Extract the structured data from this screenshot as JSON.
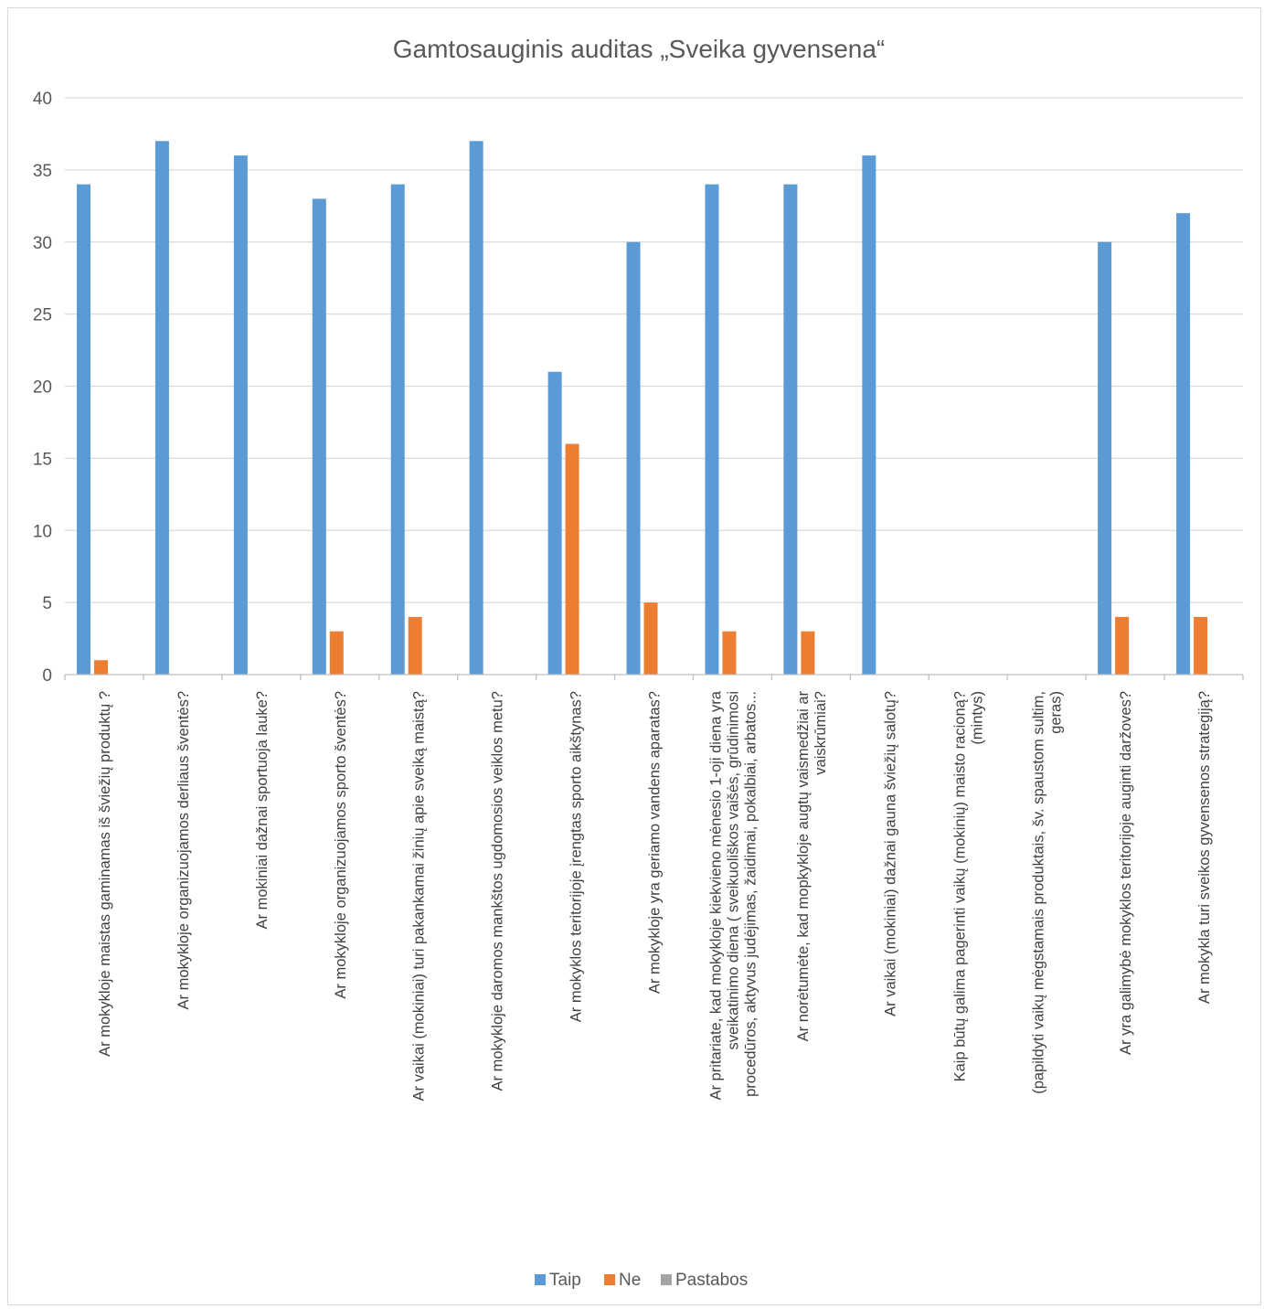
{
  "chart_data": {
    "type": "bar",
    "title": "Gamtosauginis auditas „Sveika gyvensena“",
    "xlabel": "",
    "ylabel": "",
    "ylim": [
      0,
      40
    ],
    "yticks": [
      0,
      5,
      10,
      15,
      20,
      25,
      30,
      35,
      40
    ],
    "grid": true,
    "legend_position": "bottom",
    "categories": [
      [
        "Ar mokykloje maistas gaminamas iš šviežių produktų ?"
      ],
      [
        "Ar mokykloje organizuojamos derliaus šventės?"
      ],
      [
        "Ar mokiniai dažnai sportuoja lauke?"
      ],
      [
        "Ar mokykloje organizuojamos sporto šventės?"
      ],
      [
        "Ar vaikai (mokiniai) turi pakankamai žinių apie sveiką maistą?"
      ],
      [
        "Ar mokykloje daromos mankštos ugdomosios veiklos metu?"
      ],
      [
        "Ar mokyklos teritorijoje įrengtas sporto aikštynas?"
      ],
      [
        "Ar mokykloje yra geriamo vandens aparatas?"
      ],
      [
        "Ar pritariate, kad mokykloje kiekvieno mėnesio 1-oji diena yra",
        "sveikatinimo diena ( sveikuoliškos vaišės, grūdinimosi",
        "procedūros, aktyvus judėjimas, žaidimai, pokalbiai, arbatos..."
      ],
      [
        "Ar norėtumėte, kad mopkykloje augtų vaismedžiai ar",
        "vaiskrūmiai?"
      ],
      [
        "Ar vaikai (mokiniai) dažnai gauna šviežių salotų?"
      ],
      [
        "Kaip būtų galima pagerinti vaikų (mokinių) maisto racioną?",
        "(mintys)"
      ],
      [
        "(papildyti vaikų mėgstamais produktais, šv. spaustom sultim,",
        "geras)"
      ],
      [
        "Ar yra galimybė mokyklos teritorijoje auginti daržoves?"
      ],
      [
        "Ar mokykla turi sveikos gyvensenos strategiją?"
      ]
    ],
    "series": [
      {
        "name": "Taip",
        "color": "#5b9bd5",
        "values": [
          34,
          37,
          36,
          33,
          34,
          37,
          21,
          30,
          34,
          34,
          36,
          null,
          null,
          30,
          32
        ]
      },
      {
        "name": "Ne",
        "color": "#ed7d31",
        "values": [
          1,
          null,
          null,
          3,
          4,
          null,
          16,
          5,
          3,
          3,
          null,
          null,
          null,
          4,
          4
        ]
      },
      {
        "name": "Pastabos",
        "color": "#a5a5a5",
        "values": [
          null,
          null,
          null,
          null,
          null,
          null,
          null,
          null,
          null,
          null,
          null,
          null,
          null,
          null,
          null
        ]
      }
    ]
  },
  "colors": {
    "grid": "#d9d9d9",
    "axis": "#bfbfbf",
    "text": "#595959"
  }
}
